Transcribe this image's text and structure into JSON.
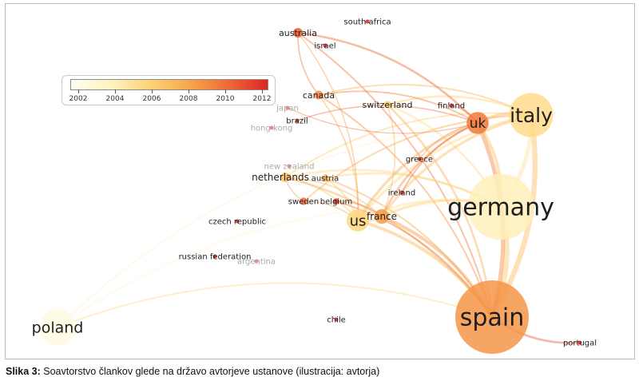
{
  "legend": {
    "ticks": [
      "2002",
      "2004",
      "2006",
      "2008",
      "2010",
      "2012"
    ]
  },
  "nodes": [
    {
      "id": "spain",
      "label": "spain",
      "weight": 10,
      "year": 2008.6,
      "faded": false
    },
    {
      "id": "germany",
      "label": "germany",
      "weight": 9,
      "year": 2004.2,
      "faded": false
    },
    {
      "id": "italy",
      "label": "italy",
      "weight": 6,
      "year": 2005.5,
      "faded": false
    },
    {
      "id": "uk",
      "label": "uk",
      "weight": 3,
      "year": 2009.5,
      "faded": false
    },
    {
      "id": "us",
      "label": "us",
      "weight": 3,
      "year": 2005.8,
      "faded": false
    },
    {
      "id": "france",
      "label": "france",
      "weight": 2,
      "year": 2008.3,
      "faded": false
    },
    {
      "id": "poland",
      "label": "poland",
      "weight": 5,
      "year": 2002.6,
      "faded": false
    },
    {
      "id": "australia",
      "label": "australia",
      "weight": 1.3,
      "year": 2010.5,
      "faded": false
    },
    {
      "id": "south_africa",
      "label": "south africa",
      "weight": 0.6,
      "year": 2011.5,
      "faded": false
    },
    {
      "id": "israel",
      "label": "israel",
      "weight": 0.6,
      "year": 2008.0,
      "faded": false
    },
    {
      "id": "canada",
      "label": "canada",
      "weight": 1.2,
      "year": 2009.0,
      "faded": false
    },
    {
      "id": "switzerland",
      "label": "switzerland",
      "weight": 1,
      "year": 2006.5,
      "faded": false
    },
    {
      "id": "finland",
      "label": "finland",
      "weight": 0.6,
      "year": 2010.5,
      "faded": false
    },
    {
      "id": "japan",
      "label": "japan",
      "weight": 0.6,
      "year": 2011.0,
      "faded": true
    },
    {
      "id": "brazil",
      "label": "brazil",
      "weight": 0.6,
      "year": 2010.0,
      "faded": false
    },
    {
      "id": "hong_kong",
      "label": "hong kong",
      "weight": 0.6,
      "year": 2011.5,
      "faded": true
    },
    {
      "id": "greece",
      "label": "greece",
      "weight": 0.6,
      "year": 2008.0,
      "faded": false
    },
    {
      "id": "new_zealand",
      "label": "new zealand",
      "weight": 0.6,
      "year": 2010.0,
      "faded": true
    },
    {
      "id": "austria",
      "label": "austria",
      "weight": 1,
      "year": 2007.5,
      "faded": false
    },
    {
      "id": "netherlands",
      "label": "netherlands",
      "weight": 1.3,
      "year": 2007.0,
      "faded": false
    },
    {
      "id": "ireland",
      "label": "ireland",
      "weight": 0.6,
      "year": 2011.0,
      "faded": false
    },
    {
      "id": "sweden",
      "label": "sweden",
      "weight": 1,
      "year": 2010.0,
      "faded": false
    },
    {
      "id": "belgium",
      "label": "belgium",
      "weight": 0.8,
      "year": 2010.5,
      "faded": false
    },
    {
      "id": "czech_republic",
      "label": "czech republic",
      "weight": 0.6,
      "year": 2012.0,
      "faded": false
    },
    {
      "id": "russian_federation",
      "label": "russian federation",
      "weight": 0.6,
      "year": 2012.0,
      "faded": false
    },
    {
      "id": "argentina",
      "label": "argentina",
      "weight": 0.6,
      "year": 2012.0,
      "faded": true
    },
    {
      "id": "chile",
      "label": "chile",
      "weight": 0.6,
      "year": 2012.0,
      "faded": false
    },
    {
      "id": "portugal",
      "label": "portugal",
      "weight": 0.6,
      "year": 2012.0,
      "faded": false
    }
  ],
  "links": [
    [
      "spain",
      "germany",
      5
    ],
    [
      "spain",
      "italy",
      5
    ],
    [
      "spain",
      "uk",
      4
    ],
    [
      "spain",
      "us",
      3
    ],
    [
      "spain",
      "france",
      3
    ],
    [
      "spain",
      "portugal",
      2
    ],
    [
      "spain",
      "poland",
      1.5
    ],
    [
      "spain",
      "switzerland",
      2
    ],
    [
      "spain",
      "netherlands",
      2
    ],
    [
      "spain",
      "canada",
      1.5
    ],
    [
      "spain",
      "australia",
      1.5
    ],
    [
      "spain",
      "belgium",
      1.5
    ],
    [
      "spain",
      "austria",
      1.5
    ],
    [
      "germany",
      "italy",
      4
    ],
    [
      "germany",
      "uk",
      3
    ],
    [
      "germany",
      "us",
      2.5
    ],
    [
      "germany",
      "france",
      2.5
    ],
    [
      "germany",
      "switzerland",
      2
    ],
    [
      "germany",
      "netherlands",
      2
    ],
    [
      "germany",
      "austria",
      2
    ],
    [
      "germany",
      "poland",
      1.5
    ],
    [
      "italy",
      "uk",
      3
    ],
    [
      "italy",
      "us",
      2.5
    ],
    [
      "italy",
      "france",
      2.5
    ],
    [
      "italy",
      "switzerland",
      2
    ],
    [
      "italy",
      "netherlands",
      1.5
    ],
    [
      "italy",
      "poland",
      1.2
    ],
    [
      "italy",
      "canada",
      1.5
    ],
    [
      "italy",
      "sweden",
      1.5
    ],
    [
      "uk",
      "us",
      2.5
    ],
    [
      "uk",
      "france",
      2
    ],
    [
      "uk",
      "australia",
      2
    ],
    [
      "uk",
      "finland",
      1.2
    ],
    [
      "uk",
      "canada",
      1.5
    ],
    [
      "uk",
      "brazil",
      1.2
    ],
    [
      "uk",
      "greece",
      1.2
    ],
    [
      "uk",
      "ireland",
      1.2
    ],
    [
      "us",
      "france",
      2
    ],
    [
      "us",
      "netherlands",
      1.5
    ],
    [
      "us",
      "austria",
      1.5
    ],
    [
      "us",
      "canada",
      1.5
    ],
    [
      "us",
      "australia",
      1.2
    ],
    [
      "us",
      "sweden",
      1.2
    ],
    [
      "france",
      "netherlands",
      1.2
    ],
    [
      "france",
      "belgium",
      1.2
    ],
    [
      "france",
      "switzerland",
      1.2
    ],
    [
      "australia",
      "canada",
      1.2
    ],
    [
      "netherlands",
      "sweden",
      1
    ],
    [
      "japan",
      "uk",
      0.8
    ]
  ],
  "caption": {
    "prefix": "Slika 3:",
    "text": " Soavtorstvo člankov glede na državo avtorjeve ustanove (ilustracija: avtorja)"
  }
}
